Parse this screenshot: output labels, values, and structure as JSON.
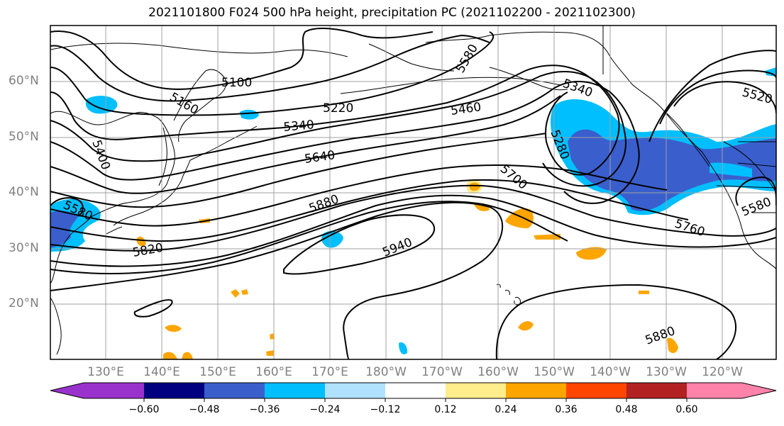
{
  "title": "2021101800 F024 500 hPa height, precipitation PC (2021102200 - 2021102300)",
  "lat_labels": [
    "60°N",
    "50°N",
    "40°N",
    "30°N",
    "20°N"
  ],
  "lon_labels": [
    "130°E",
    "140°E",
    "150°E",
    "160°E",
    "170°E",
    "180°W",
    "170°W",
    "160°W",
    "150°W",
    "140°W",
    "130°W",
    "120°W"
  ],
  "contour_labels": [
    "5100",
    "5160",
    "5220",
    "5340",
    "5400",
    "5580",
    "5640",
    "5820",
    "5880",
    "5940",
    "5460",
    "5340",
    "5280",
    "5700",
    "5760",
    "5520",
    "5580",
    "5880",
    "5580"
  ],
  "colorbar": {
    "ticks": [
      "−0.60",
      "−0.48",
      "−0.36",
      "−0.24",
      "−0.12",
      "0.12",
      "0.24",
      "0.36",
      "0.48",
      "0.60"
    ],
    "colors": [
      "#9932cc",
      "#000080",
      "#3a5fcd",
      "#00bfff",
      "#b0e2ff",
      "#ffffff",
      "#ffec8b",
      "#ffa500",
      "#ff4500",
      "#b22222",
      "#ff82ab"
    ]
  }
}
